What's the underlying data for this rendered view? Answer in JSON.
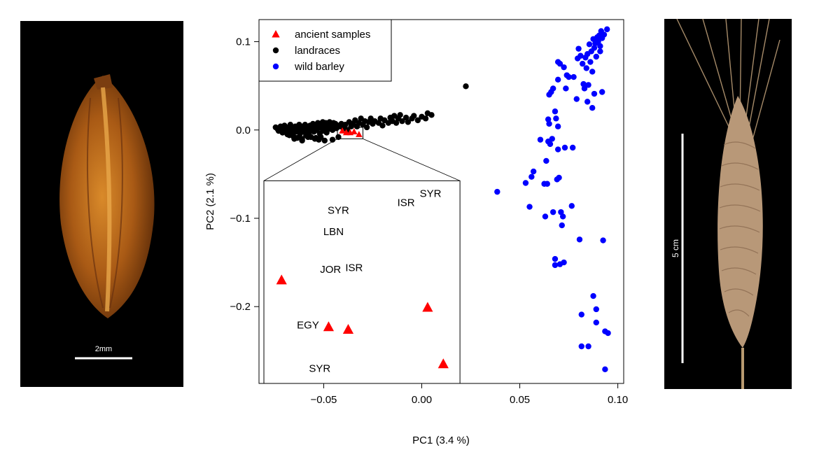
{
  "left_photo": {
    "subject": "barley grain",
    "scale_label": "2mm"
  },
  "right_photo": {
    "subject": "barley spike",
    "scale_label": "5 cm"
  },
  "chart_data": {
    "type": "scatter",
    "xlabel": "PC1 (3.4 %)",
    "ylabel": "PC2 (2.1 %)",
    "xlim": [
      -0.083,
      0.103
    ],
    "ylim": [
      -0.287,
      0.125
    ],
    "xticks": [
      -0.05,
      0.0,
      0.05,
      0.1
    ],
    "xtick_labels": [
      "−0.05",
      "0.00",
      "0.05",
      "0.10"
    ],
    "yticks": [
      -0.2,
      -0.1,
      0.0,
      0.1
    ],
    "ytick_labels": [
      "−0.2",
      "−0.1",
      "0.0",
      "0.1"
    ],
    "grid": false,
    "legend_position": "top-left",
    "legend": [
      {
        "label": "ancient samples",
        "marker": "triangle",
        "color": "#ff0000"
      },
      {
        "label": "landraces",
        "marker": "circle",
        "color": "#000000"
      },
      {
        "label": "wild barley",
        "marker": "circle",
        "color": "#0000ff"
      }
    ],
    "series": [
      {
        "name": "landraces",
        "color": "#000000",
        "marker": "circle",
        "points": [
          [
            -0.0745,
            0.003
          ],
          [
            -0.0735,
            0.001
          ],
          [
            -0.073,
            -0.001
          ],
          [
            -0.072,
            0.004
          ],
          [
            -0.0715,
            0.0
          ],
          [
            -0.071,
            -0.003
          ],
          [
            -0.0705,
            0.002
          ],
          [
            -0.07,
            0.005
          ],
          [
            -0.0695,
            -0.002
          ],
          [
            -0.069,
            0.001
          ],
          [
            -0.0685,
            -0.005
          ],
          [
            -0.068,
            0.003
          ],
          [
            -0.0675,
            -0.001
          ],
          [
            -0.067,
            0.006
          ],
          [
            -0.0665,
            -0.004
          ],
          [
            -0.066,
            0.002
          ],
          [
            -0.0655,
            -0.007
          ],
          [
            -0.065,
            0.0
          ],
          [
            -0.0645,
            0.004
          ],
          [
            -0.064,
            -0.002
          ],
          [
            -0.0635,
            -0.009
          ],
          [
            -0.063,
            0.002
          ],
          [
            -0.0625,
            0.006
          ],
          [
            -0.062,
            -0.004
          ],
          [
            -0.0615,
            0.001
          ],
          [
            -0.061,
            -0.01
          ],
          [
            -0.0605,
            0.004
          ],
          [
            -0.06,
            -0.002
          ],
          [
            -0.0595,
            0.006
          ],
          [
            -0.059,
            -0.006
          ],
          [
            -0.0585,
            0.001
          ],
          [
            -0.058,
            0.003
          ],
          [
            -0.0575,
            -0.003
          ],
          [
            -0.057,
            0.005
          ],
          [
            -0.0565,
            -0.008
          ],
          [
            -0.056,
            0.002
          ],
          [
            -0.0555,
            0.007
          ],
          [
            -0.055,
            -0.002
          ],
          [
            -0.0545,
            0.004
          ],
          [
            -0.054,
            -0.009
          ],
          [
            -0.0535,
            0.0
          ],
          [
            -0.053,
            0.008
          ],
          [
            -0.0525,
            0.003
          ],
          [
            -0.052,
            -0.004
          ],
          [
            -0.0515,
            0.006
          ],
          [
            -0.051,
            0.002
          ],
          [
            -0.0505,
            0.009
          ],
          [
            -0.05,
            -0.001
          ],
          [
            -0.0495,
            0.004
          ],
          [
            -0.049,
            0.008
          ],
          [
            -0.0485,
            -0.003
          ],
          [
            -0.048,
            0.005
          ],
          [
            -0.0475,
            0.001
          ],
          [
            -0.047,
            0.009
          ],
          [
            -0.0465,
            0.003
          ],
          [
            -0.046,
            0.006
          ],
          [
            -0.0455,
            0.0
          ],
          [
            -0.045,
            0.008
          ],
          [
            -0.0445,
            0.003
          ],
          [
            -0.044,
            0.007
          ],
          [
            -0.0435,
            0.002
          ],
          [
            -0.043,
            0.005
          ],
          [
            -0.0425,
            -0.008
          ],
          [
            -0.042,
            0.004
          ],
          [
            -0.041,
            0.007
          ],
          [
            -0.04,
            0.002
          ],
          [
            -0.039,
            0.006
          ],
          [
            -0.038,
            0.0
          ],
          [
            -0.037,
            0.009
          ],
          [
            -0.036,
            0.004
          ],
          [
            -0.035,
            0.007
          ],
          [
            -0.034,
            0.011
          ],
          [
            -0.033,
            0.004
          ],
          [
            -0.032,
            0.008
          ],
          [
            -0.031,
            0.013
          ],
          [
            -0.03,
            0.006
          ],
          [
            -0.029,
            0.01
          ],
          [
            -0.028,
            0.003
          ],
          [
            -0.027,
            0.009
          ],
          [
            -0.026,
            0.013
          ],
          [
            -0.025,
            0.007
          ],
          [
            -0.024,
            0.01
          ],
          [
            -0.022,
            0.008
          ],
          [
            -0.021,
            0.013
          ],
          [
            -0.02,
            0.005
          ],
          [
            -0.019,
            0.011
          ],
          [
            -0.017,
            0.008
          ],
          [
            -0.016,
            0.014
          ],
          [
            -0.015,
            0.01
          ],
          [
            -0.014,
            0.016
          ],
          [
            -0.013,
            0.008
          ],
          [
            -0.012,
            0.013
          ],
          [
            -0.011,
            0.017
          ],
          [
            -0.01,
            0.01
          ],
          [
            -0.008,
            0.014
          ],
          [
            -0.007,
            0.009
          ],
          [
            -0.005,
            0.013
          ],
          [
            -0.004,
            0.016
          ],
          [
            -0.002,
            0.011
          ],
          [
            0.0,
            0.015
          ],
          [
            0.002,
            0.013
          ],
          [
            0.003,
            0.019
          ],
          [
            0.005,
            0.017
          ],
          [
            0.0225,
            0.0495
          ],
          [
            -0.0545,
            -0.01
          ],
          [
            -0.0525,
            -0.011
          ],
          [
            -0.0495,
            -0.012
          ],
          [
            -0.0455,
            -0.011
          ],
          [
            -0.058,
            -0.008
          ],
          [
            -0.0625,
            -0.008
          ],
          [
            -0.0675,
            -0.006
          ],
          [
            -0.065,
            -0.01
          ],
          [
            -0.061,
            -0.012
          ],
          [
            -0.0515,
            -0.008
          ]
        ]
      },
      {
        "name": "ancient samples",
        "color": "#ff0000",
        "marker": "triangle",
        "points": [
          [
            -0.0405,
            -0.001
          ],
          [
            -0.0385,
            -0.003
          ],
          [
            -0.0365,
            -0.003
          ],
          [
            -0.0345,
            -0.002
          ],
          [
            -0.032,
            -0.005
          ]
        ]
      },
      {
        "name": "wild barley",
        "color": "#0000ff",
        "marker": "circle",
        "points": [
          [
            0.0385,
            -0.07
          ],
          [
            0.053,
            -0.06
          ],
          [
            0.055,
            -0.087
          ],
          [
            0.056,
            -0.053
          ],
          [
            0.057,
            -0.047
          ],
          [
            0.0605,
            -0.011
          ],
          [
            0.0625,
            -0.061
          ],
          [
            0.0635,
            -0.035
          ],
          [
            0.063,
            -0.098
          ],
          [
            0.0645,
            -0.013
          ],
          [
            0.064,
            -0.061
          ],
          [
            0.065,
            0.007
          ],
          [
            0.0645,
            0.012
          ],
          [
            0.0655,
            -0.016
          ],
          [
            0.065,
            0.04
          ],
          [
            0.0665,
            -0.01
          ],
          [
            0.067,
            -0.093
          ],
          [
            0.066,
            0.043
          ],
          [
            0.067,
            0.047
          ],
          [
            0.068,
            -0.153
          ],
          [
            0.068,
            -0.146
          ],
          [
            0.068,
            0.021
          ],
          [
            0.0685,
            0.013
          ],
          [
            0.069,
            -0.056
          ],
          [
            0.0695,
            -0.022
          ],
          [
            0.0695,
            0.004
          ],
          [
            0.0695,
            0.057
          ],
          [
            0.0695,
            0.077
          ],
          [
            0.07,
            -0.054
          ],
          [
            0.0705,
            -0.152
          ],
          [
            0.0705,
            0.075
          ],
          [
            0.071,
            -0.093
          ],
          [
            0.0715,
            -0.108
          ],
          [
            0.072,
            -0.098
          ],
          [
            0.0725,
            -0.15
          ],
          [
            0.0725,
            0.071
          ],
          [
            0.073,
            -0.02
          ],
          [
            0.0735,
            0.047
          ],
          [
            0.074,
            0.062
          ],
          [
            0.075,
            0.06
          ],
          [
            0.0765,
            -0.086
          ],
          [
            0.077,
            -0.02
          ],
          [
            0.0775,
            0.06
          ],
          [
            0.079,
            0.035
          ],
          [
            0.0795,
            0.081
          ],
          [
            0.08,
            0.092
          ],
          [
            0.0805,
            -0.124
          ],
          [
            0.081,
            0.084
          ],
          [
            0.0815,
            -0.209
          ],
          [
            0.082,
            0.075
          ],
          [
            0.0815,
            -0.245
          ],
          [
            0.0825,
            0.052
          ],
          [
            0.083,
            0.047
          ],
          [
            0.0835,
            0.082
          ],
          [
            0.084,
            0.07
          ],
          [
            0.0845,
            0.086
          ],
          [
            0.085,
            -0.245
          ],
          [
            0.0845,
            0.032
          ],
          [
            0.085,
            0.051
          ],
          [
            0.0855,
            0.097
          ],
          [
            0.086,
            0.077
          ],
          [
            0.0865,
            0.089
          ],
          [
            0.087,
            0.025
          ],
          [
            0.087,
            0.066
          ],
          [
            0.0875,
            -0.188
          ],
          [
            0.0875,
            0.103
          ],
          [
            0.088,
            0.041
          ],
          [
            0.088,
            0.093
          ],
          [
            0.0885,
            0.098
          ],
          [
            0.089,
            0.083
          ],
          [
            0.089,
            -0.203
          ],
          [
            0.0895,
            0.105
          ],
          [
            0.089,
            -0.218
          ],
          [
            0.09,
            0.1
          ],
          [
            0.0905,
            0.107
          ],
          [
            0.091,
            0.089
          ],
          [
            0.091,
            0.095
          ],
          [
            0.0915,
            0.112
          ],
          [
            0.092,
            0.043
          ],
          [
            0.092,
            0.104
          ],
          [
            0.0925,
            -0.125
          ],
          [
            0.093,
            0.108
          ],
          [
            0.0935,
            -0.271
          ],
          [
            0.0935,
            -0.228
          ],
          [
            0.0945,
            0.114
          ],
          [
            0.095,
            -0.23
          ]
        ]
      }
    ],
    "inset": {
      "source_xlim": [
        -0.043,
        -0.03
      ],
      "source_ylim": [
        -0.01,
        0.003
      ],
      "range_x": [
        -0.0805,
        0.0195
      ],
      "range_y": [
        -0.287,
        -0.0575
      ],
      "labels": [
        {
          "text": "SYR",
          "x": -0.0425,
          "y": -0.095
        },
        {
          "text": "LBN",
          "x": -0.045,
          "y": -0.119
        },
        {
          "text": "ISR",
          "x": -0.008,
          "y": -0.086
        },
        {
          "text": "SYR",
          "x": 0.0045,
          "y": -0.076
        },
        {
          "text": "JOR",
          "x": -0.0465,
          "y": -0.162
        },
        {
          "text": "ISR",
          "x": -0.0345,
          "y": -0.16
        },
        {
          "text": "EGY",
          "x": -0.058,
          "y": -0.225
        },
        {
          "text": "SYR",
          "x": -0.052,
          "y": -0.274
        }
      ],
      "triangles": [
        [
          -0.0715,
          -0.17
        ],
        [
          -0.0475,
          -0.223
        ],
        [
          -0.0375,
          -0.226
        ],
        [
          0.003,
          -0.201
        ],
        [
          0.011,
          -0.265
        ]
      ]
    }
  }
}
